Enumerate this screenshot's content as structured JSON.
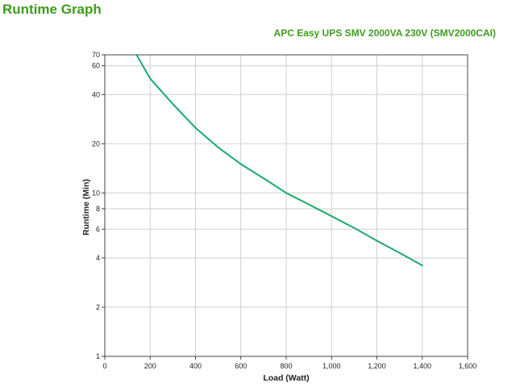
{
  "page": {
    "title": "Runtime Graph"
  },
  "chart_data": {
    "type": "line",
    "title": "APC Easy UPS SMV 2000VA 230V (SMV2000CAI)",
    "xlabel": "Load (Watt)",
    "ylabel": "Runtime (Min)",
    "xlim": [
      0,
      1600
    ],
    "ylim": [
      1,
      70
    ],
    "y_scale": "log",
    "grid": true,
    "x_ticks": [
      0,
      200,
      400,
      600,
      800,
      1000,
      1200,
      1400,
      1600
    ],
    "x_tick_labels": [
      "0",
      "200",
      "400",
      "600",
      "800",
      "1,000",
      "1,200",
      "1,400",
      "1,600"
    ],
    "y_ticks": [
      1,
      2,
      4,
      6,
      8,
      10,
      20,
      40,
      60,
      70
    ],
    "y_tick_labels": [
      "1",
      "2",
      "4",
      "6",
      "8",
      "10",
      "20",
      "40",
      "60",
      "70"
    ],
    "series": [
      {
        "color": "#1aab6b",
        "x": [
          140,
          200,
          300,
          400,
          500,
          600,
          700,
          800,
          900,
          1000,
          1100,
          1200,
          1300,
          1400
        ],
        "y": [
          70,
          50,
          35,
          25,
          19,
          15,
          12.3,
          10,
          8.5,
          7.2,
          6.1,
          5.1,
          4.3,
          3.6
        ]
      }
    ]
  }
}
